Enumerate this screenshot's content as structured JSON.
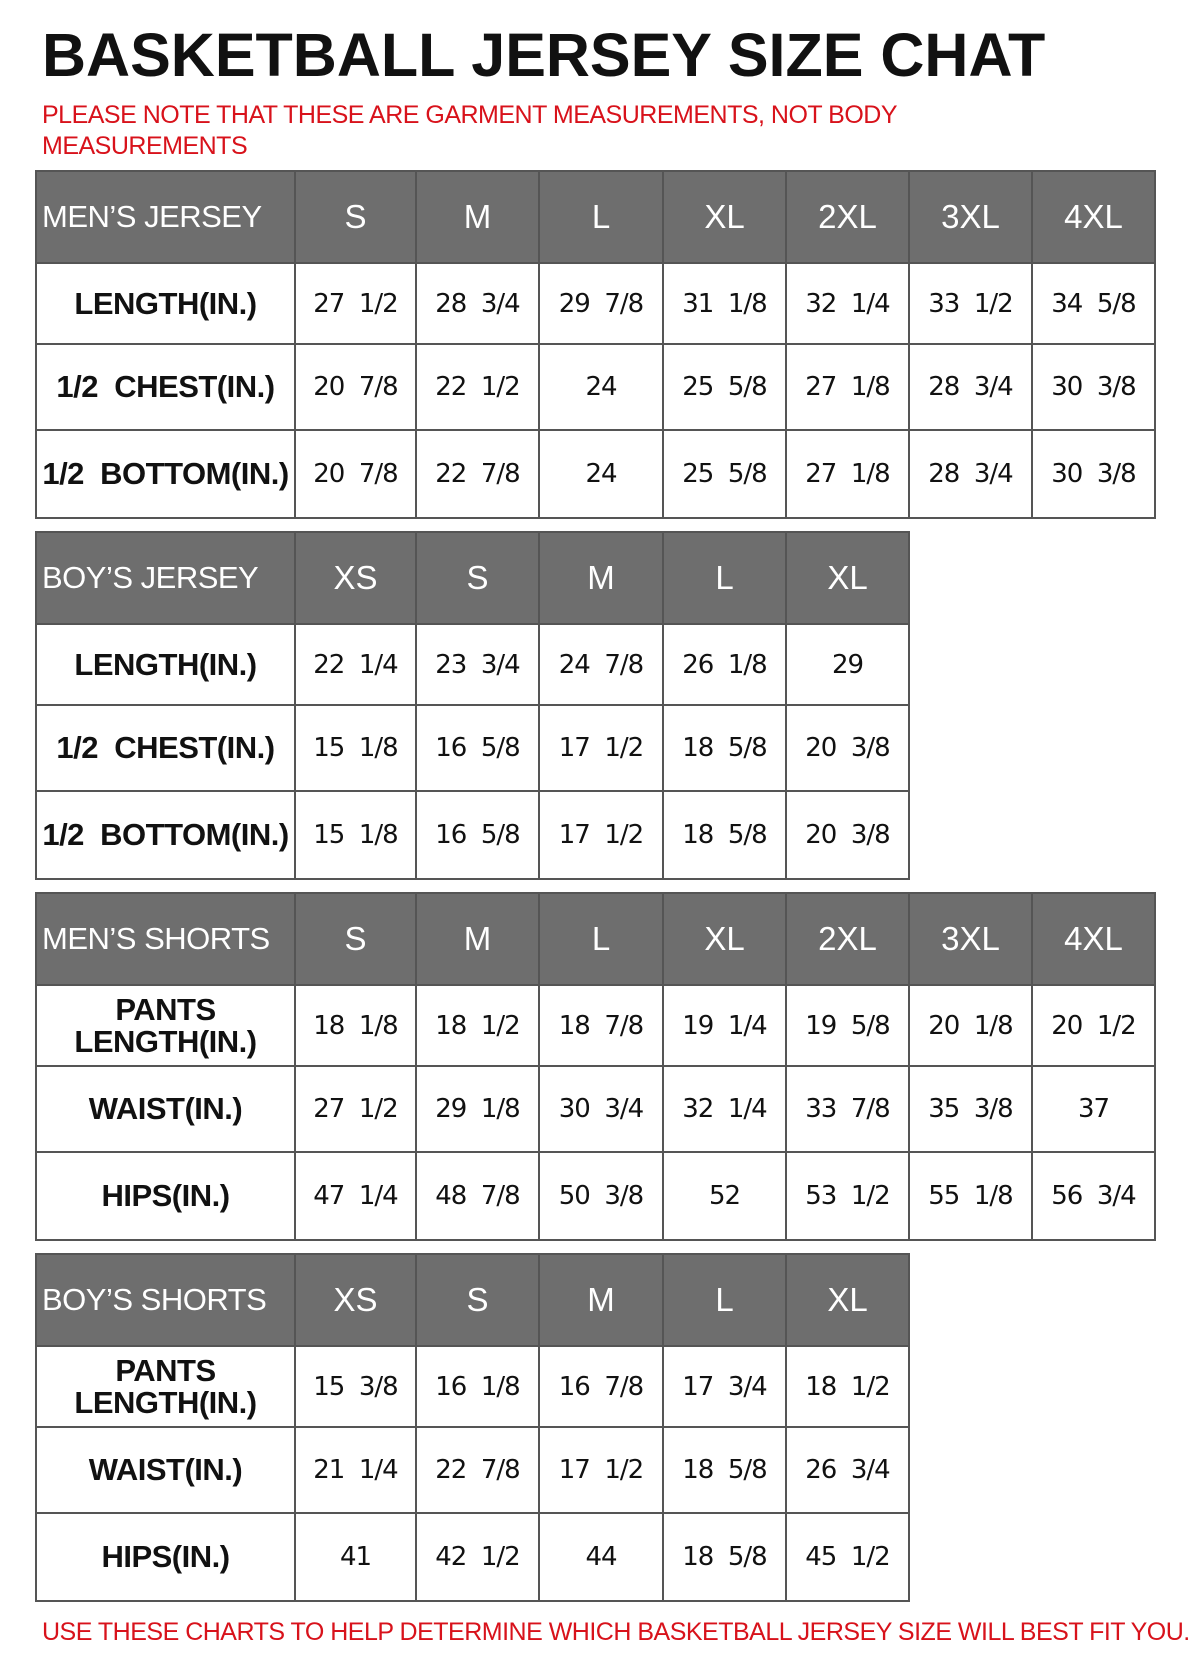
{
  "title": "BASKETBALL JERSEY SIZE CHAT",
  "note": "PLEASE NOTE THAT THESE ARE GARMENT MEASUREMENTS, NOT BODY MEASUREMENTS",
  "footer": "USE THESE CHARTS TO HELP DETERMINE WHICH BASKETBALL JERSEY SIZE WILL BEST FIT YOU.",
  "colors": {
    "header_bg": "#6e6e6e",
    "note_red": "#d8121b"
  },
  "tables": [
    {
      "header": "MEN’S JERSEY",
      "sizes": [
        "S",
        "M",
        "L",
        "XL",
        "2XL",
        "3XL",
        "4XL"
      ],
      "rows": [
        {
          "label": "LENGTH(IN.)",
          "values": [
            "27  1/2",
            "28  3/4",
            "29  7/8",
            "31  1/8",
            "32  1/4",
            "33  1/2",
            "34  5/8"
          ]
        },
        {
          "label": "1/2  CHEST(IN.)",
          "values": [
            "20  7/8",
            "22  1/2",
            "24",
            "25  5/8",
            "27  1/8",
            "28  3/4",
            "30  3/8"
          ]
        },
        {
          "label": "1/2  BOTTOM(IN.)",
          "values": [
            "20  7/8",
            "22  7/8",
            "24",
            "25  5/8",
            "27  1/8",
            "28  3/4",
            "30  3/8"
          ]
        }
      ]
    },
    {
      "header": "BOY’S JERSEY",
      "sizes": [
        "XS",
        "S",
        "M",
        "L",
        "XL"
      ],
      "rows": [
        {
          "label": "LENGTH(IN.)",
          "values": [
            "22  1/4",
            "23  3/4",
            "24  7/8",
            "26  1/8",
            "29"
          ]
        },
        {
          "label": "1/2  CHEST(IN.)",
          "values": [
            "15  1/8",
            "16  5/8",
            "17  1/2",
            "18  5/8",
            "20  3/8"
          ]
        },
        {
          "label": "1/2  BOTTOM(IN.)",
          "values": [
            "15  1/8",
            "16  5/8",
            "17  1/2",
            "18  5/8",
            "20  3/8"
          ]
        }
      ]
    },
    {
      "header": "MEN’S SHORTS",
      "sizes": [
        "S",
        "M",
        "L",
        "XL",
        "2XL",
        "3XL",
        "4XL"
      ],
      "rows": [
        {
          "label": "PANTS\nLENGTH(IN.)",
          "values": [
            "18  1/8",
            "18  1/2",
            "18  7/8",
            "19  1/4",
            "19  5/8",
            "20  1/8",
            "20  1/2"
          ]
        },
        {
          "label": "WAIST(IN.)",
          "values": [
            "27  1/2",
            "29  1/8",
            "30  3/4",
            "32  1/4",
            "33  7/8",
            "35  3/8",
            "37"
          ]
        },
        {
          "label": "HIPS(IN.)",
          "values": [
            "47  1/4",
            "48  7/8",
            "50  3/8",
            "52",
            "53  1/2",
            "55  1/8",
            "56  3/4"
          ]
        }
      ]
    },
    {
      "header": "BOY’S SHORTS",
      "sizes": [
        "XS",
        "S",
        "M",
        "L",
        "XL"
      ],
      "rows": [
        {
          "label": "PANTS\nLENGTH(IN.)",
          "values": [
            "15  3/8",
            "16  1/8",
            "16  7/8",
            "17  3/4",
            "18  1/2"
          ]
        },
        {
          "label": "WAIST(IN.)",
          "values": [
            "21  1/4",
            "22  7/8",
            "17  1/2",
            "18  5/8",
            "26  3/4"
          ]
        },
        {
          "label": "HIPS(IN.)",
          "values": [
            "41",
            "42  1/2",
            "44",
            "18  5/8",
            "45  1/2"
          ]
        }
      ]
    }
  ]
}
